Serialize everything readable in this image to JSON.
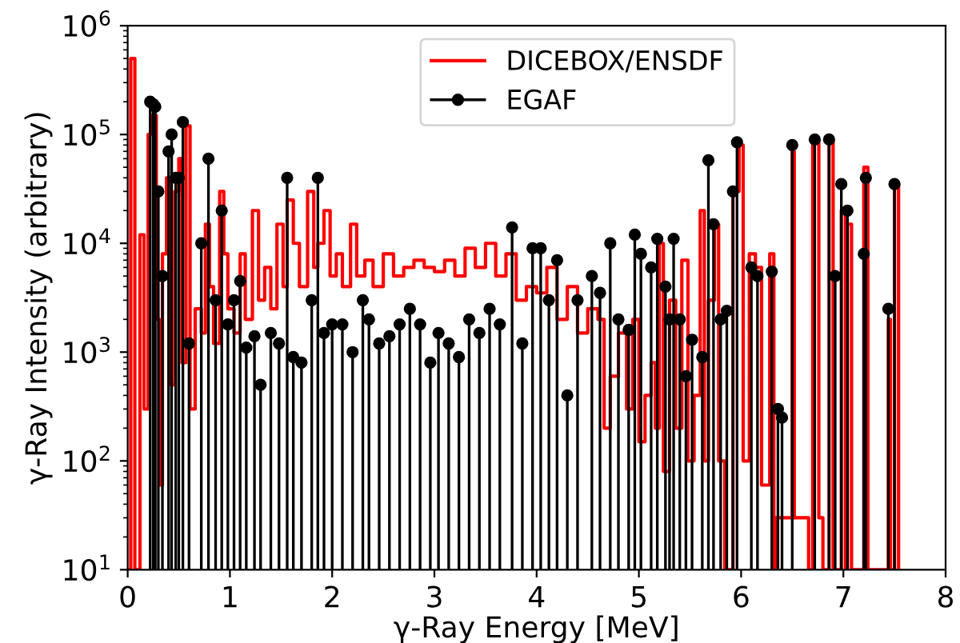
{
  "chart_data": {
    "type": "step",
    "xlabel": "γ-Ray Energy [MeV]",
    "ylabel": "γ-Ray Intensity (arbitrary)",
    "xlim": [
      0,
      8
    ],
    "xticks": [
      0,
      1,
      2,
      3,
      4,
      5,
      6,
      7,
      8
    ],
    "ylim": [
      10,
      1000000
    ],
    "yticks": [
      {
        "value": 10,
        "label": "10$^{1}$"
      },
      {
        "value": 100,
        "label": "10$^{2}$"
      },
      {
        "value": 1000,
        "label": "10$^{3}$"
      },
      {
        "value": 10000,
        "label": "10$^{4}$"
      },
      {
        "value": 100000,
        "label": "10$^{5}$"
      },
      {
        "value": 1000000,
        "label": "10$^{6}$"
      }
    ],
    "log": "y",
    "legend": "top",
    "series": [
      {
        "name": "DICEBOX/ENSDF",
        "color": "#ff0000",
        "x": [
          0,
          0.03,
          0.07,
          0.12,
          0.16,
          0.2,
          0.24,
          0.28,
          0.31,
          0.34,
          0.38,
          0.42,
          0.46,
          0.5,
          0.53,
          0.57,
          0.61,
          0.66,
          0.72,
          0.76,
          0.8,
          0.84,
          0.9,
          0.94,
          0.98,
          1.04,
          1.1,
          1.15,
          1.22,
          1.28,
          1.34,
          1.4,
          1.46,
          1.52,
          1.56,
          1.62,
          1.68,
          1.76,
          1.82,
          1.86,
          1.92,
          1.98,
          2.04,
          2.1,
          2.18,
          2.24,
          2.32,
          2.4,
          2.5,
          2.6,
          2.7,
          2.8,
          2.9,
          3.0,
          3.1,
          3.2,
          3.3,
          3.4,
          3.5,
          3.6,
          3.7,
          3.8,
          3.9,
          4.0,
          4.1,
          4.2,
          4.3,
          4.4,
          4.5,
          4.6,
          4.66,
          4.72,
          4.8,
          4.88,
          4.94,
          5.0,
          5.06,
          5.12,
          5.16,
          5.2,
          5.24,
          5.3,
          5.36,
          5.42,
          5.48,
          5.54,
          5.6,
          5.64,
          5.68,
          5.74,
          5.78,
          5.84,
          5.92,
          5.98,
          6.02,
          6.08,
          6.14,
          6.2,
          6.28,
          6.32,
          6.34,
          6.5,
          6.52,
          6.66,
          6.7,
          6.76,
          6.8,
          6.86,
          6.9,
          6.98,
          7.02,
          7.04,
          7.08,
          7.2,
          7.24,
          7.44,
          7.46,
          7.5,
          7.54
        ],
        "values": [
          10,
          500000,
          10,
          12000,
          300,
          100000,
          150000,
          2000,
          60,
          8000,
          40000,
          500,
          30000,
          60000,
          800,
          120000,
          300,
          2500,
          1500,
          15000,
          4000,
          1200,
          30000,
          8000,
          2500,
          1500,
          8000,
          2000,
          20000,
          3000,
          6000,
          2500,
          15000,
          4000,
          25000,
          10000,
          4000,
          30000,
          6000,
          10000,
          20000,
          5000,
          8000,
          4000,
          15000,
          5000,
          7000,
          4000,
          8000,
          5000,
          6000,
          7000,
          6000,
          5500,
          7000,
          5000,
          9000,
          6000,
          10000,
          5000,
          8000,
          3000,
          4000,
          3500,
          6000,
          2000,
          4000,
          1500,
          2500,
          2000,
          200,
          600,
          1500,
          300,
          2000,
          150,
          400,
          800,
          200,
          10000,
          80,
          3000,
          200,
          7000,
          100,
          400,
          20000,
          100,
          3000,
          15000,
          100,
          10,
          30000,
          80000,
          100,
          8000,
          6000,
          60,
          8000,
          10,
          30,
          70000,
          30,
          10,
          90000,
          30,
          10,
          90000,
          10,
          20000,
          10,
          15000,
          10,
          50000,
          10,
          2000,
          10,
          35000,
          10
        ]
      },
      {
        "name": "EGAF",
        "type": "lollipop",
        "color": "#000000",
        "marker": "circle",
        "x": [
          0.22,
          0.25,
          0.27,
          0.3,
          0.34,
          0.4,
          0.43,
          0.47,
          0.5,
          0.54,
          0.6,
          0.72,
          0.79,
          0.86,
          0.92,
          0.98,
          1.04,
          1.1,
          1.16,
          1.24,
          1.3,
          1.4,
          1.48,
          1.56,
          1.62,
          1.7,
          1.8,
          1.86,
          1.92,
          2.0,
          2.1,
          2.2,
          2.3,
          2.36,
          2.46,
          2.56,
          2.66,
          2.76,
          2.86,
          2.96,
          3.04,
          3.14,
          3.24,
          3.34,
          3.44,
          3.54,
          3.64,
          3.76,
          3.86,
          3.96,
          4.04,
          4.12,
          4.2,
          4.3,
          4.4,
          4.54,
          4.62,
          4.72,
          4.8,
          4.9,
          4.96,
          5.02,
          5.12,
          5.18,
          5.26,
          5.3,
          5.34,
          5.4,
          5.46,
          5.52,
          5.62,
          5.68,
          5.73,
          5.8,
          5.86,
          5.92,
          5.96,
          6.1,
          6.16,
          6.3,
          6.36,
          6.4,
          6.5,
          6.72,
          6.86,
          6.92,
          6.98,
          7.04,
          7.2,
          7.22,
          7.44,
          7.5
        ],
        "values": [
          200000,
          190000,
          180000,
          30000,
          5000,
          70000,
          100000,
          40000,
          40000,
          130000,
          1200,
          10000,
          60000,
          3000,
          20000,
          1800,
          3000,
          4500,
          1100,
          1400,
          500,
          1500,
          1200,
          40000,
          900,
          800,
          3000,
          40000,
          1500,
          1800,
          1800,
          1000,
          3000,
          2000,
          1200,
          1400,
          1800,
          2500,
          1800,
          800,
          1500,
          1200,
          900,
          2000,
          1500,
          2500,
          1800,
          14000,
          1200,
          9000,
          9000,
          3000,
          7000,
          400,
          3000,
          5000,
          3500,
          10000,
          2000,
          1600,
          12000,
          8000,
          6000,
          11000,
          4000,
          2000,
          11000,
          2000,
          600,
          1300,
          900,
          58000,
          15000,
          2000,
          2400,
          30000,
          85000,
          6000,
          5000,
          5500,
          300,
          250,
          80000,
          90000,
          90000,
          5000,
          35000,
          20000,
          8000,
          40000,
          2500,
          35000
        ]
      }
    ]
  }
}
